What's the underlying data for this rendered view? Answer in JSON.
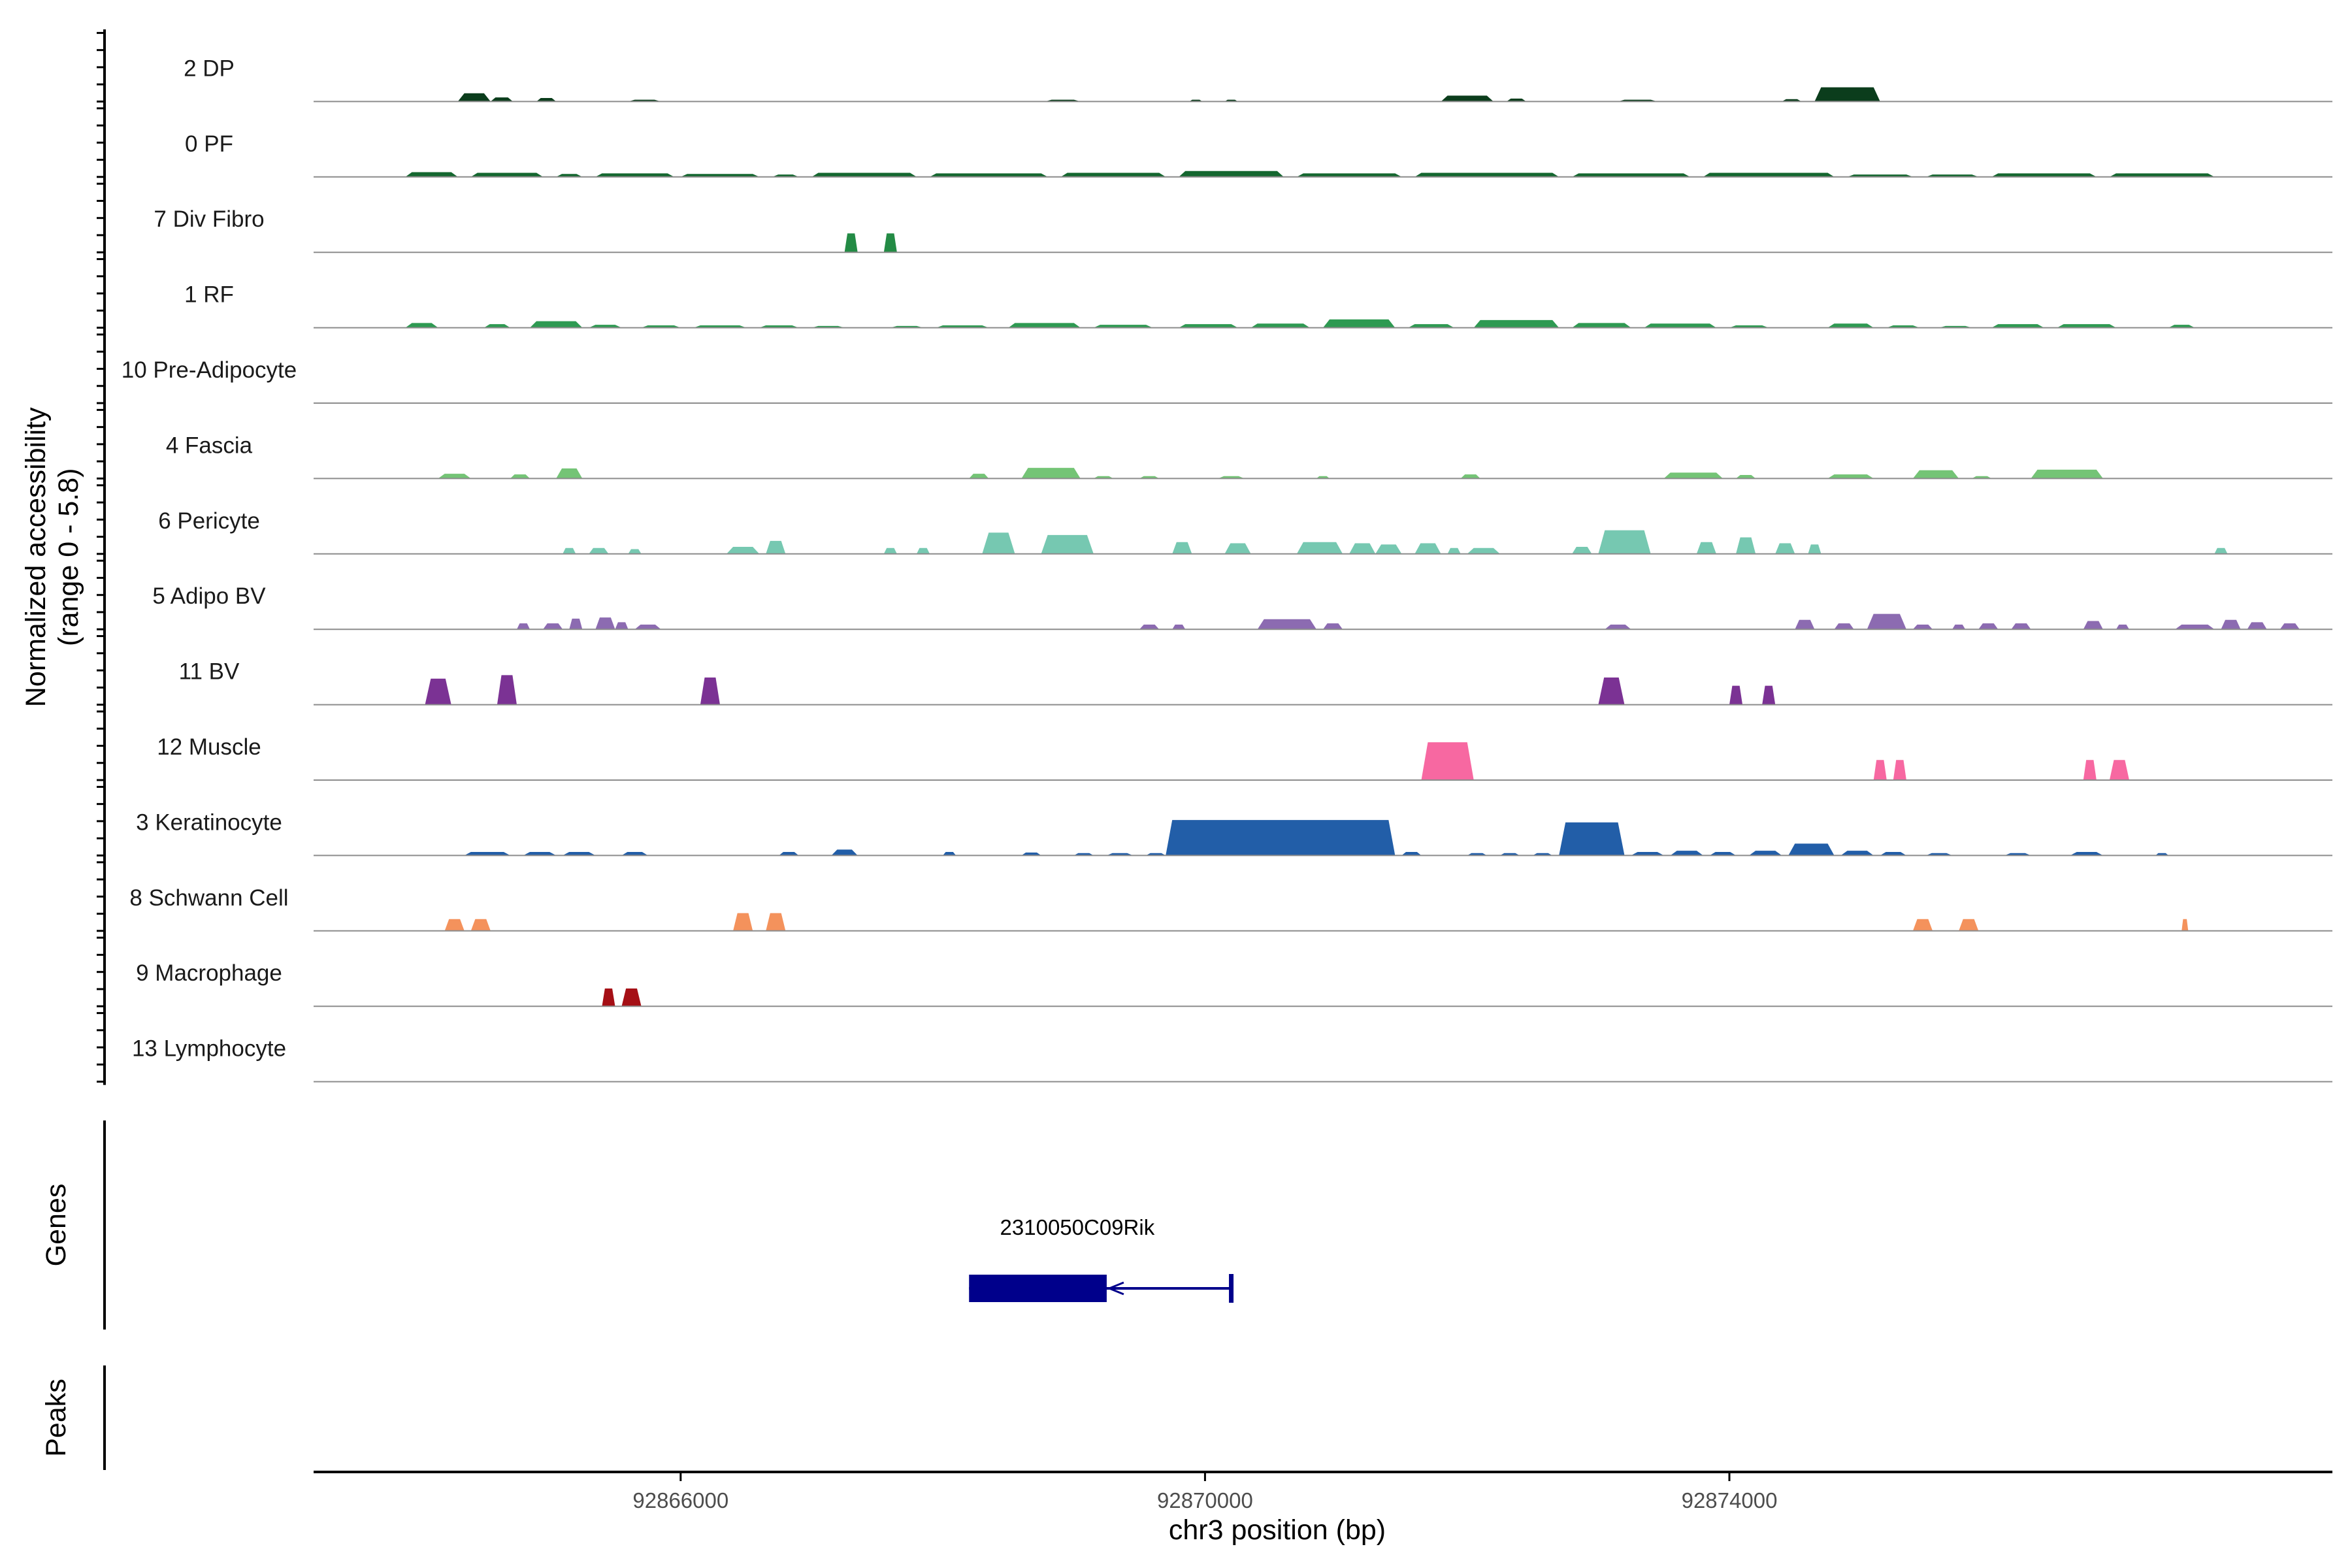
{
  "chart_data": {
    "type": "area",
    "xlabel": "chr3 position (bp)",
    "ylabel": "Normalized accessibility\n(range 0 - 5.8)",
    "xlim": [
      92863200,
      92878600
    ],
    "ylim": [
      0,
      5.8
    ],
    "x_ticks": [
      92866000,
      92870000,
      92874000
    ],
    "x_tick_labels": [
      "92866000",
      "92870000",
      "92874000"
    ],
    "genes_track_label": "Genes",
    "peaks_track_label": "Peaks",
    "grid": false,
    "legend": "none",
    "tracks": [
      {
        "name": "2 DP",
        "color": "#0b3d1c",
        "segments": [
          [
            92864300,
            92864550,
            0.7
          ],
          [
            92864550,
            92864720,
            0.35
          ],
          [
            92864900,
            92865050,
            0.3
          ],
          [
            92865600,
            92865850,
            0.15
          ],
          [
            92868780,
            92869050,
            0.15
          ],
          [
            92869880,
            92869980,
            0.15
          ],
          [
            92870150,
            92870250,
            0.15
          ],
          [
            92871800,
            92872200,
            0.5
          ],
          [
            92872300,
            92872450,
            0.25
          ],
          [
            92873150,
            92873450,
            0.15
          ],
          [
            92874400,
            92874550,
            0.2
          ],
          [
            92874650,
            92875150,
            1.2
          ]
        ]
      },
      {
        "name": "0 PF",
        "color": "#14672f",
        "segments": [
          [
            92863900,
            92864300,
            0.4
          ],
          [
            92864400,
            92864950,
            0.35
          ],
          [
            92865050,
            92865250,
            0.25
          ],
          [
            92865350,
            92865950,
            0.3
          ],
          [
            92866000,
            92866600,
            0.25
          ],
          [
            92866700,
            92866900,
            0.2
          ],
          [
            92867000,
            92867800,
            0.35
          ],
          [
            92867900,
            92868800,
            0.3
          ],
          [
            92868900,
            92869700,
            0.35
          ],
          [
            92869800,
            92870600,
            0.5
          ],
          [
            92870700,
            92871500,
            0.3
          ],
          [
            92871600,
            92872700,
            0.35
          ],
          [
            92872800,
            92873700,
            0.3
          ],
          [
            92873800,
            92874800,
            0.35
          ],
          [
            92874900,
            92875400,
            0.2
          ],
          [
            92875500,
            92875900,
            0.2
          ],
          [
            92876000,
            92876800,
            0.3
          ],
          [
            92876900,
            92877700,
            0.3
          ]
        ]
      },
      {
        "name": "7 Div Fibro",
        "color": "#238b45",
        "segments": [
          [
            92867250,
            92867350,
            1.6
          ],
          [
            92867550,
            92867650,
            1.6
          ]
        ]
      },
      {
        "name": "1 RF",
        "color": "#2e9a52",
        "segments": [
          [
            92863900,
            92864150,
            0.4
          ],
          [
            92864500,
            92864700,
            0.3
          ],
          [
            92864850,
            92865250,
            0.55
          ],
          [
            92865300,
            92865550,
            0.25
          ],
          [
            92865700,
            92866000,
            0.2
          ],
          [
            92866100,
            92866500,
            0.2
          ],
          [
            92866600,
            92866900,
            0.2
          ],
          [
            92867000,
            92867250,
            0.15
          ],
          [
            92867600,
            92867850,
            0.15
          ],
          [
            92867950,
            92868350,
            0.2
          ],
          [
            92868500,
            92869050,
            0.4
          ],
          [
            92869150,
            92869600,
            0.25
          ],
          [
            92869800,
            92870250,
            0.3
          ],
          [
            92870350,
            92870800,
            0.35
          ],
          [
            92870900,
            92871450,
            0.7
          ],
          [
            92871550,
            92871900,
            0.3
          ],
          [
            92872050,
            92872700,
            0.65
          ],
          [
            92872800,
            92873250,
            0.4
          ],
          [
            92873350,
            92873900,
            0.35
          ],
          [
            92874000,
            92874300,
            0.2
          ],
          [
            92874750,
            92875100,
            0.35
          ],
          [
            92875200,
            92875450,
            0.2
          ],
          [
            92875600,
            92875850,
            0.15
          ],
          [
            92876000,
            92876400,
            0.3
          ],
          [
            92876500,
            92876950,
            0.3
          ],
          [
            92877350,
            92877550,
            0.25
          ]
        ]
      },
      {
        "name": "10 Pre-Adipocyte",
        "color": "#41ab5d",
        "segments": []
      },
      {
        "name": "4 Fascia",
        "color": "#74c476",
        "segments": [
          [
            92864150,
            92864400,
            0.4
          ],
          [
            92864700,
            92864850,
            0.35
          ],
          [
            92865050,
            92865250,
            0.85
          ],
          [
            92868200,
            92868350,
            0.4
          ],
          [
            92868600,
            92869050,
            0.9
          ],
          [
            92869150,
            92869300,
            0.2
          ],
          [
            92869500,
            92869650,
            0.2
          ],
          [
            92870100,
            92870300,
            0.2
          ],
          [
            92870850,
            92870950,
            0.2
          ],
          [
            92871950,
            92872100,
            0.35
          ],
          [
            92873500,
            92873950,
            0.5
          ],
          [
            92874050,
            92874200,
            0.3
          ],
          [
            92874750,
            92875100,
            0.35
          ],
          [
            92875400,
            92875750,
            0.7
          ],
          [
            92875850,
            92876000,
            0.2
          ],
          [
            92876300,
            92876850,
            0.75
          ]
        ]
      },
      {
        "name": "6 Pericyte",
        "color": "#76c8b1",
        "segments": [
          [
            92865100,
            92865200,
            0.5
          ],
          [
            92865300,
            92865450,
            0.5
          ],
          [
            92865600,
            92865700,
            0.4
          ],
          [
            92866350,
            92866600,
            0.6
          ],
          [
            92866650,
            92866800,
            1.1
          ],
          [
            92867550,
            92867650,
            0.5
          ],
          [
            92867800,
            92867900,
            0.5
          ],
          [
            92868300,
            92868550,
            1.8
          ],
          [
            92868750,
            92869150,
            1.6
          ],
          [
            92869750,
            92869900,
            1.0
          ],
          [
            92870150,
            92870350,
            0.9
          ],
          [
            92870700,
            92871050,
            1.0
          ],
          [
            92871100,
            92871300,
            0.9
          ],
          [
            92871300,
            92871500,
            0.8
          ],
          [
            92871600,
            92871800,
            0.9
          ],
          [
            92871850,
            92871950,
            0.5
          ],
          [
            92872000,
            92872250,
            0.5
          ],
          [
            92872800,
            92872950,
            0.6
          ],
          [
            92873000,
            92873400,
            2.0
          ],
          [
            92873750,
            92873900,
            1.0
          ],
          [
            92874050,
            92874200,
            1.4
          ],
          [
            92874350,
            92874500,
            0.9
          ],
          [
            92874600,
            92874700,
            0.8
          ],
          [
            92877700,
            92877800,
            0.5
          ]
        ]
      },
      {
        "name": "5 Adipo BV",
        "color": "#8c6bb1",
        "segments": [
          [
            92864750,
            92864850,
            0.5
          ],
          [
            92864950,
            92865100,
            0.5
          ],
          [
            92865150,
            92865250,
            0.9
          ],
          [
            92865350,
            92865500,
            1.0
          ],
          [
            92865500,
            92865600,
            0.6
          ],
          [
            92865650,
            92865850,
            0.4
          ],
          [
            92869500,
            92869650,
            0.4
          ],
          [
            92869750,
            92869850,
            0.4
          ],
          [
            92870400,
            92870850,
            0.85
          ],
          [
            92870900,
            92871050,
            0.5
          ],
          [
            92873050,
            92873250,
            0.4
          ],
          [
            92874500,
            92874650,
            0.8
          ],
          [
            92874800,
            92874950,
            0.5
          ],
          [
            92875050,
            92875350,
            1.3
          ],
          [
            92875400,
            92875550,
            0.4
          ],
          [
            92875700,
            92875800,
            0.4
          ],
          [
            92875900,
            92876050,
            0.5
          ],
          [
            92876150,
            92876300,
            0.5
          ],
          [
            92876700,
            92876850,
            0.7
          ],
          [
            92876950,
            92877050,
            0.4
          ],
          [
            92877400,
            92877700,
            0.4
          ],
          [
            92877750,
            92877900,
            0.8
          ],
          [
            92877950,
            92878100,
            0.6
          ],
          [
            92878200,
            92878350,
            0.5
          ]
        ]
      },
      {
        "name": "11 BV",
        "color": "#7b3294",
        "segments": [
          [
            92864050,
            92864250,
            2.2
          ],
          [
            92864600,
            92864750,
            2.5
          ],
          [
            92866150,
            92866300,
            2.3
          ],
          [
            92873000,
            92873200,
            2.3
          ],
          [
            92874000,
            92874100,
            1.6
          ],
          [
            92874250,
            92874350,
            1.6
          ]
        ]
      },
      {
        "name": "12 Muscle",
        "color": "#f768a1",
        "segments": [
          [
            92871650,
            92872050,
            3.2
          ],
          [
            92875100,
            92875200,
            1.7
          ],
          [
            92875250,
            92875350,
            1.7
          ],
          [
            92876700,
            92876800,
            1.7
          ],
          [
            92876900,
            92877050,
            1.7
          ]
        ]
      },
      {
        "name": "3 Keratinocyte",
        "color": "#225ea8",
        "segments": [
          [
            92864350,
            92864700,
            0.3
          ],
          [
            92864800,
            92865050,
            0.3
          ],
          [
            92865100,
            92865350,
            0.3
          ],
          [
            92865550,
            92865750,
            0.3
          ],
          [
            92866750,
            92866900,
            0.3
          ],
          [
            92867150,
            92867350,
            0.5
          ],
          [
            92868000,
            92868100,
            0.3
          ],
          [
            92868600,
            92868750,
            0.25
          ],
          [
            92869000,
            92869150,
            0.2
          ],
          [
            92869250,
            92869450,
            0.2
          ],
          [
            92869550,
            92869700,
            0.2
          ],
          [
            92869700,
            92871450,
            3.0
          ],
          [
            92871500,
            92871650,
            0.3
          ],
          [
            92872000,
            92872150,
            0.2
          ],
          [
            92872250,
            92872400,
            0.2
          ],
          [
            92872500,
            92872650,
            0.2
          ],
          [
            92872700,
            92873200,
            2.8
          ],
          [
            92873250,
            92873500,
            0.3
          ],
          [
            92873550,
            92873800,
            0.4
          ],
          [
            92873850,
            92874050,
            0.3
          ],
          [
            92874150,
            92874400,
            0.4
          ],
          [
            92874450,
            92874800,
            1.0
          ],
          [
            92874850,
            92875100,
            0.4
          ],
          [
            92875150,
            92875350,
            0.3
          ],
          [
            92875500,
            92875700,
            0.2
          ],
          [
            92876100,
            92876300,
            0.2
          ],
          [
            92876600,
            92876850,
            0.3
          ],
          [
            92877250,
            92877350,
            0.2
          ]
        ]
      },
      {
        "name": "8 Schwann Cell",
        "color": "#f4925c",
        "segments": [
          [
            92864200,
            92864350,
            1.0
          ],
          [
            92864400,
            92864550,
            1.0
          ],
          [
            92866400,
            92866550,
            1.5
          ],
          [
            92866650,
            92866800,
            1.5
          ],
          [
            92875400,
            92875550,
            1.0
          ],
          [
            92875750,
            92875900,
            1.0
          ],
          [
            92877450,
            92877500,
            1.0
          ]
        ]
      },
      {
        "name": "9 Macrophage",
        "color": "#a50f15",
        "segments": [
          [
            92865400,
            92865500,
            1.5
          ],
          [
            92865550,
            92865700,
            1.5
          ]
        ]
      },
      {
        "name": "13 Lymphocyte",
        "color": "#4a1486",
        "segments": []
      }
    ],
    "genes": [
      {
        "name": "2310050C09Rik",
        "color": "#00008b",
        "start": 92868200,
        "end": 92870200,
        "thick_start": 92868200,
        "thick_end": 92869250,
        "strand": "-"
      }
    ],
    "peaks": []
  }
}
